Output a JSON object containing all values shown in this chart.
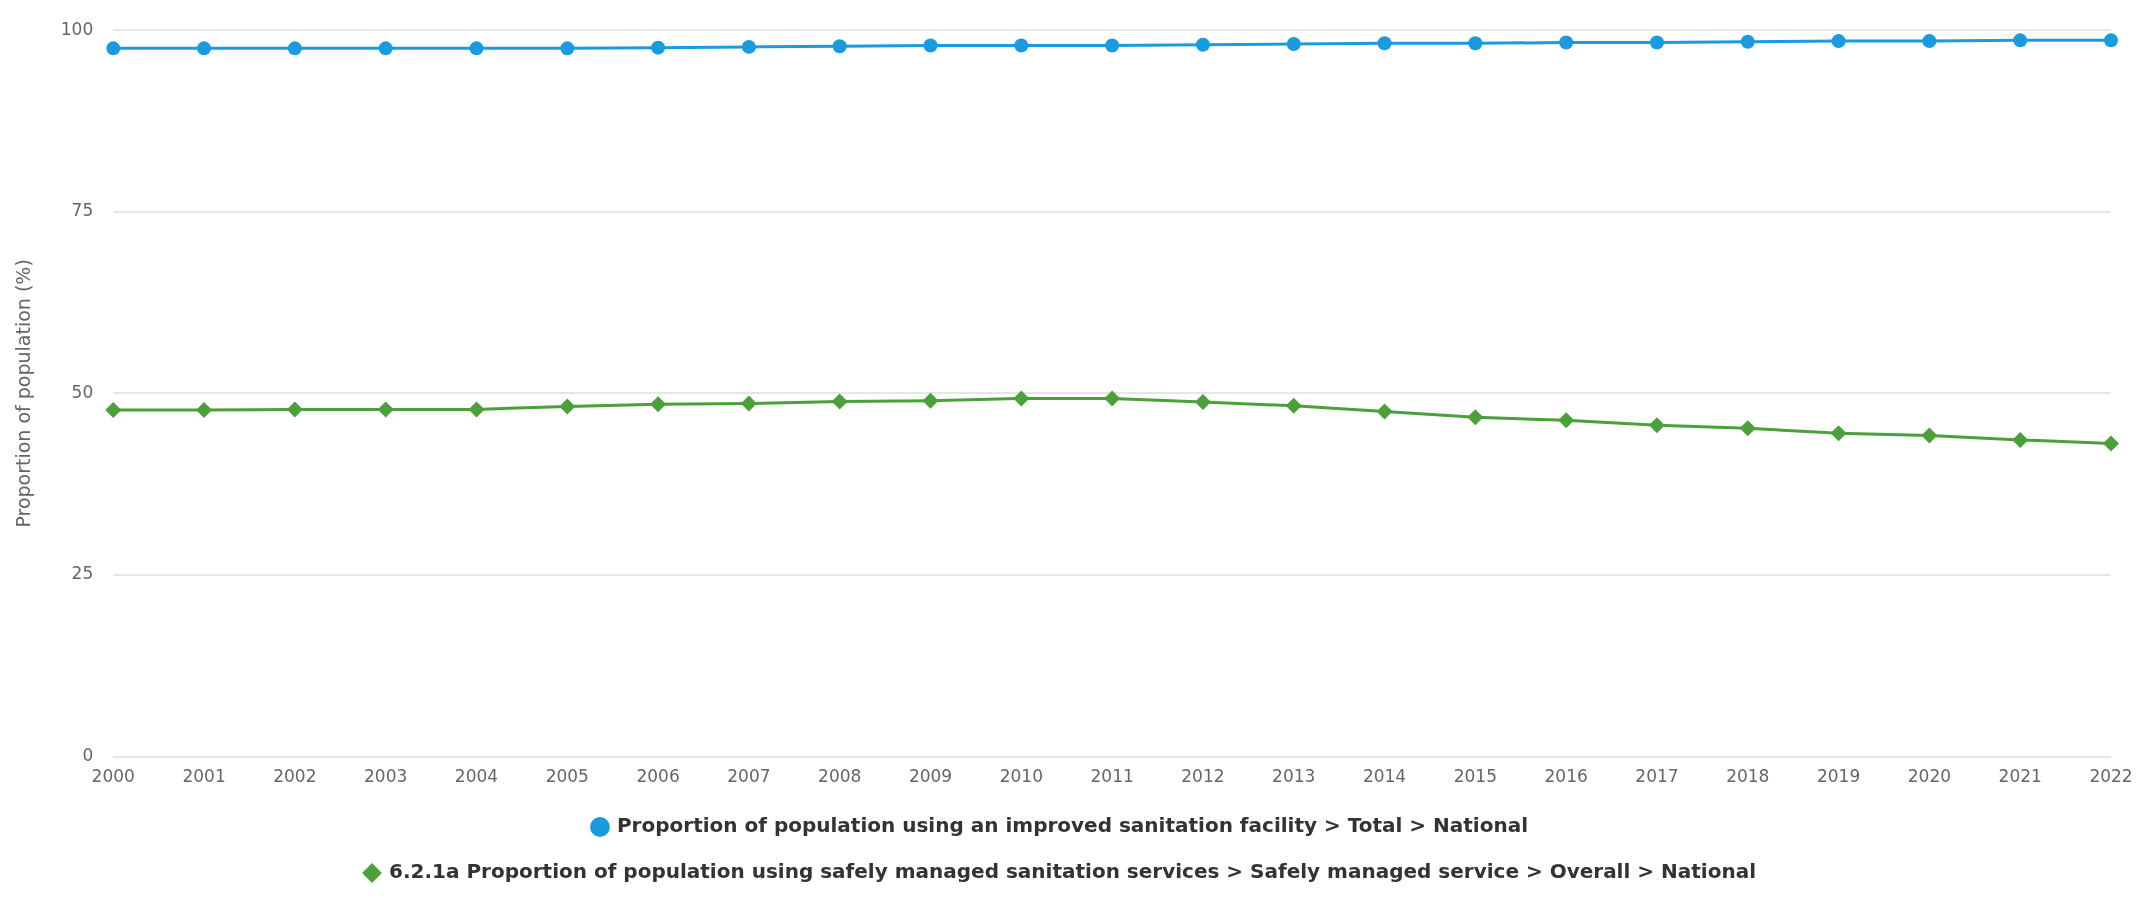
{
  "chart_data": {
    "type": "line",
    "ylabel": "Proportion of population (%)",
    "categories": [
      "2000",
      "2001",
      "2002",
      "2003",
      "2004",
      "2005",
      "2006",
      "2007",
      "2008",
      "2009",
      "2010",
      "2011",
      "2012",
      "2013",
      "2014",
      "2015",
      "2016",
      "2017",
      "2018",
      "2019",
      "2020",
      "2021",
      "2022"
    ],
    "series": [
      {
        "name": "Proportion of population using an improved sanitation facility > Total > National",
        "color": "#1a9be0",
        "marker": "circle",
        "values": [
          97.5,
          97.5,
          97.5,
          97.5,
          97.5,
          97.5,
          97.6,
          97.7,
          97.8,
          97.9,
          97.9,
          97.9,
          98.0,
          98.1,
          98.2,
          98.2,
          98.3,
          98.3,
          98.4,
          98.5,
          98.5,
          98.6,
          98.6
        ]
      },
      {
        "name": "6.2.1a Proportion of population using safely managed sanitation services > Safely managed service > Overall > National",
        "color": "#4ca03a",
        "marker": "diamond",
        "values": [
          47.7,
          47.7,
          47.8,
          47.8,
          47.8,
          48.2,
          48.5,
          48.6,
          48.9,
          49.0,
          49.3,
          49.3,
          48.8,
          48.3,
          47.5,
          46.7,
          46.3,
          45.6,
          45.2,
          44.5,
          44.2,
          43.6,
          43.1
        ]
      }
    ],
    "ylim": [
      0,
      100
    ],
    "yticks": [
      0,
      25,
      50,
      75,
      100
    ],
    "grid": "y",
    "legend": "bottom",
    "line_style": "solid"
  }
}
